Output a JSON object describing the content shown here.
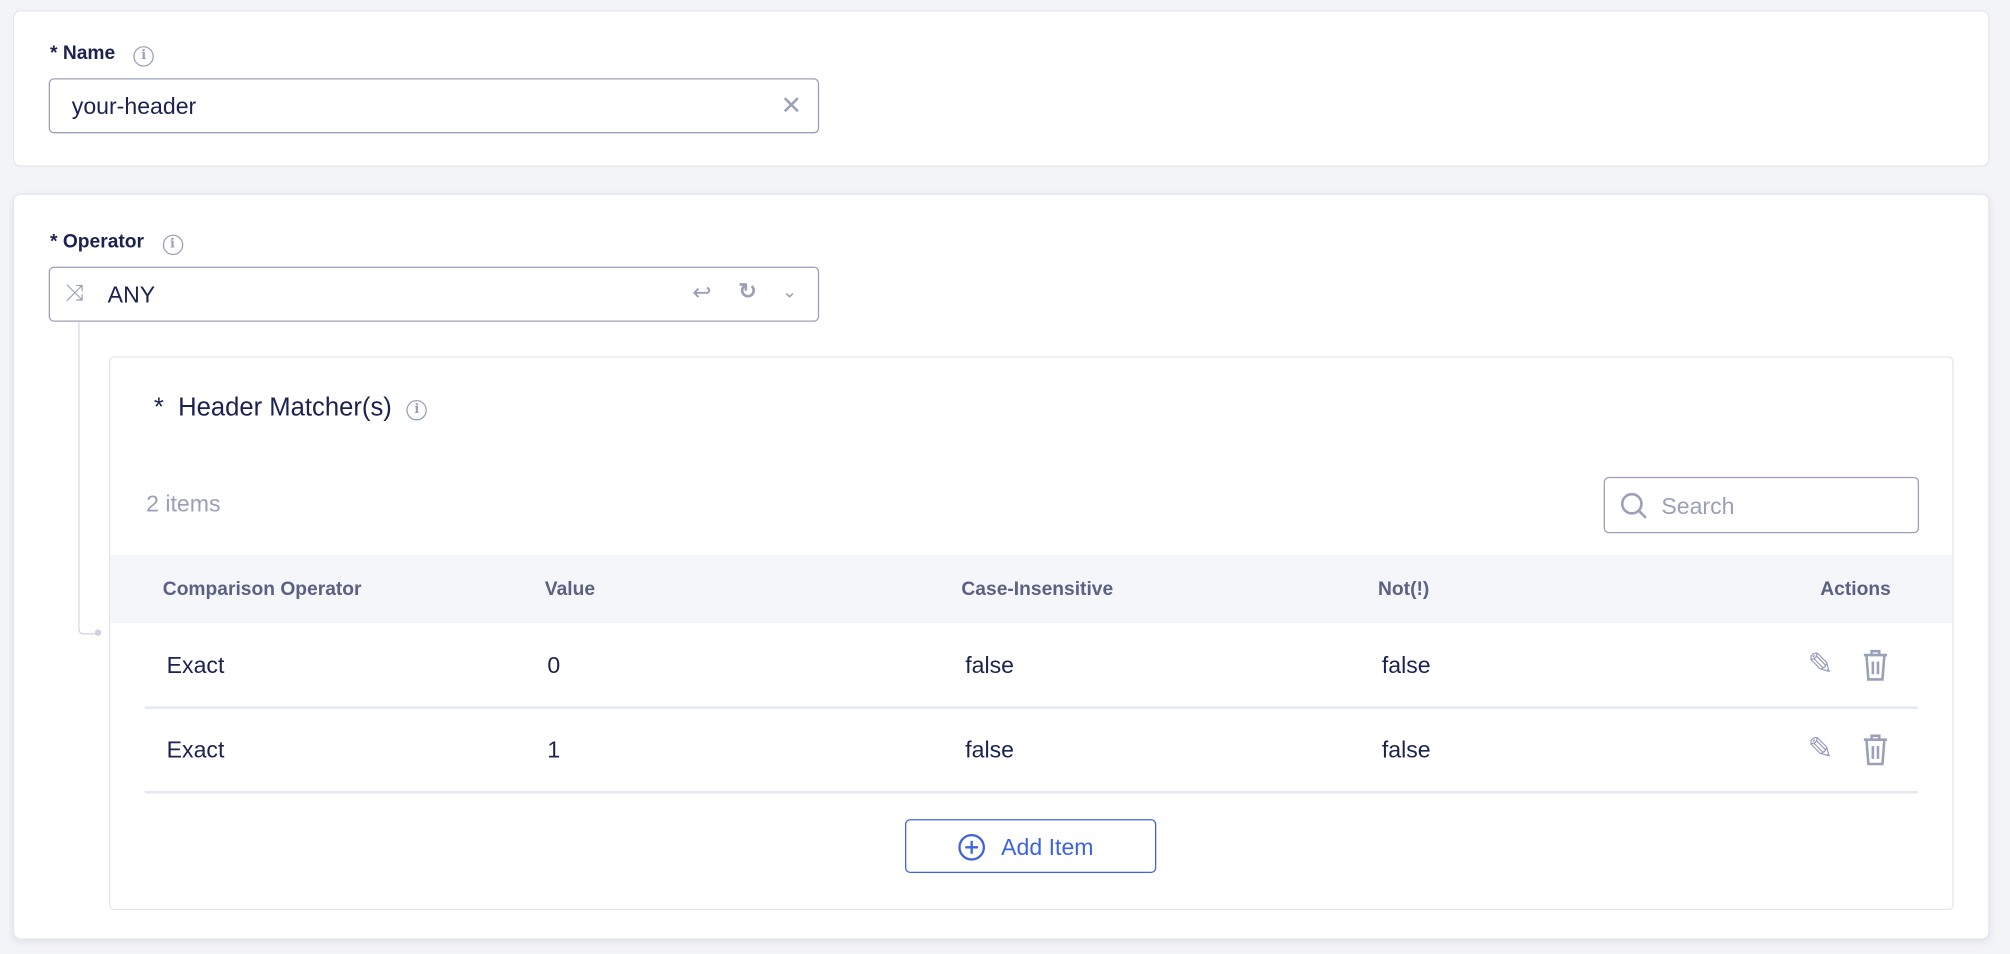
{
  "name_field": {
    "label": "Name",
    "required_mark": "*",
    "value": "your-header",
    "info_icon": "info-icon",
    "clear_icon": "close-icon"
  },
  "operator_field": {
    "label": "Operator",
    "required_mark": "*",
    "value": "ANY",
    "icons": [
      "shuffle-icon",
      "return-icon",
      "refresh-icon",
      "chevron-down-icon"
    ]
  },
  "matchers": {
    "title": "Header Matcher(s)",
    "required_mark": "*",
    "count_text": "2 items",
    "search_placeholder": "Search",
    "columns": [
      "Comparison Operator",
      "Value",
      "Case-Insensitive",
      "Not(!)",
      "Actions"
    ],
    "rows": [
      [
        "Exact",
        "0",
        "false",
        "false"
      ],
      [
        "Exact",
        "1",
        "false",
        "false"
      ]
    ],
    "add_label": "Add Item"
  },
  "colors": {
    "text": "#1b2250",
    "muted": "#9aa0b8",
    "accent": "#3e63dd",
    "background": "#f3f4f8"
  }
}
